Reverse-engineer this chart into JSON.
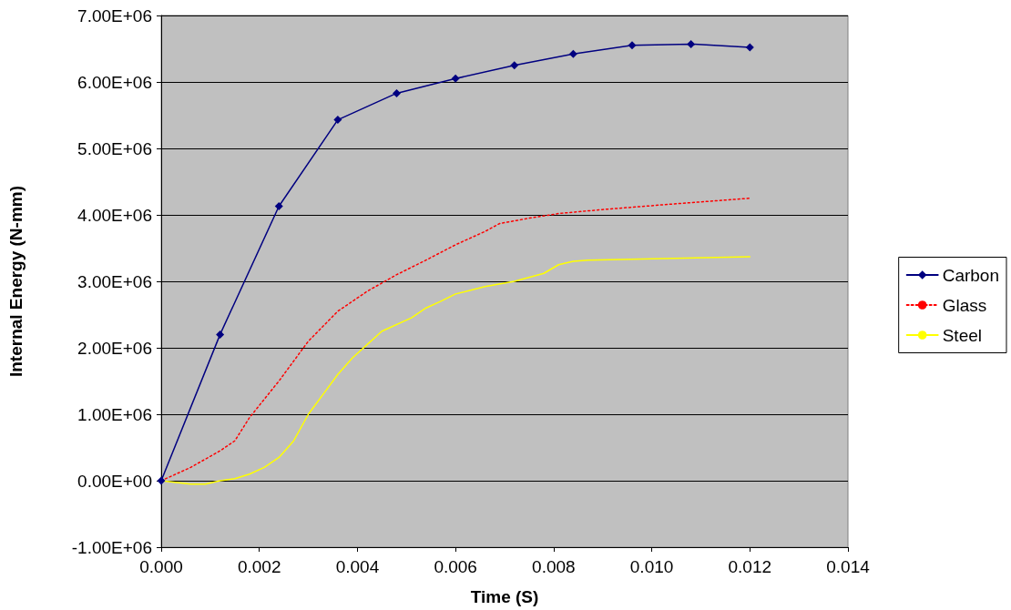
{
  "chart_data": {
    "type": "line",
    "xlabel": "Time (S)",
    "ylabel": "Internal Energy (N-mm)",
    "xlim": [
      0,
      0.014
    ],
    "ylim": [
      -1000000,
      7000000
    ],
    "xticks": [
      {
        "value": 0,
        "label": "0.000"
      },
      {
        "value": 0.002,
        "label": "0.002"
      },
      {
        "value": 0.004,
        "label": "0.004"
      },
      {
        "value": 0.006,
        "label": "0.006"
      },
      {
        "value": 0.008,
        "label": "0.008"
      },
      {
        "value": 0.01,
        "label": "0.010"
      },
      {
        "value": 0.012,
        "label": "0.012"
      },
      {
        "value": 0.014,
        "label": "0.014"
      }
    ],
    "yticks": [
      {
        "value": -1000000,
        "label": "-1.00E+06"
      },
      {
        "value": 0,
        "label": "0.00E+00"
      },
      {
        "value": 1000000,
        "label": "1.00E+06"
      },
      {
        "value": 2000000,
        "label": "2.00E+06"
      },
      {
        "value": 3000000,
        "label": "3.00E+06"
      },
      {
        "value": 4000000,
        "label": "4.00E+06"
      },
      {
        "value": 5000000,
        "label": "5.00E+06"
      },
      {
        "value": 6000000,
        "label": "6.00E+06"
      },
      {
        "value": 7000000,
        "label": "7.00E+06"
      }
    ],
    "grid": "y",
    "legend": "right",
    "series": [
      {
        "name": "Carbon",
        "color": "#000080",
        "marker": "diamond",
        "line_style": "solid",
        "x": [
          0,
          0.0012,
          0.0024,
          0.0036,
          0.0048,
          0.006,
          0.0072,
          0.0084,
          0.0096,
          0.0108,
          0.012
        ],
        "values": [
          0,
          2200000,
          4130000,
          5430000,
          5830000,
          6050000,
          6250000,
          6420000,
          6550000,
          6570000,
          6520000
        ]
      },
      {
        "name": "Glass",
        "color": "#ff0000",
        "marker": "none",
        "line_style": "dotted",
        "x": [
          0,
          0.0006,
          0.0012,
          0.0015,
          0.0018,
          0.0024,
          0.003,
          0.0036,
          0.0042,
          0.0048,
          0.0054,
          0.006,
          0.0066,
          0.0069,
          0.0075,
          0.0081,
          0.009,
          0.0102,
          0.012
        ],
        "values": [
          0,
          200000,
          450000,
          600000,
          950000,
          1500000,
          2100000,
          2550000,
          2850000,
          3100000,
          3320000,
          3550000,
          3750000,
          3870000,
          3950000,
          4020000,
          4080000,
          4150000,
          4250000
        ]
      },
      {
        "name": "Steel",
        "color": "#ffff00",
        "marker": "none",
        "line_style": "solid",
        "x": [
          0,
          0.0006,
          0.0009,
          0.0012,
          0.0015,
          0.0018,
          0.0021,
          0.0024,
          0.0027,
          0.003,
          0.0033,
          0.0036,
          0.0039,
          0.0042,
          0.0045,
          0.0051,
          0.0054,
          0.0057,
          0.006,
          0.0066,
          0.0072,
          0.0078,
          0.0081,
          0.0084,
          0.0087,
          0.012
        ],
        "values": [
          0,
          -50000,
          -50000,
          0,
          30000,
          100000,
          200000,
          350000,
          600000,
          1000000,
          1300000,
          1600000,
          1850000,
          2050000,
          2250000,
          2450000,
          2600000,
          2700000,
          2810000,
          2920000,
          3000000,
          3120000,
          3250000,
          3300000,
          3320000,
          3370000
        ]
      }
    ]
  }
}
